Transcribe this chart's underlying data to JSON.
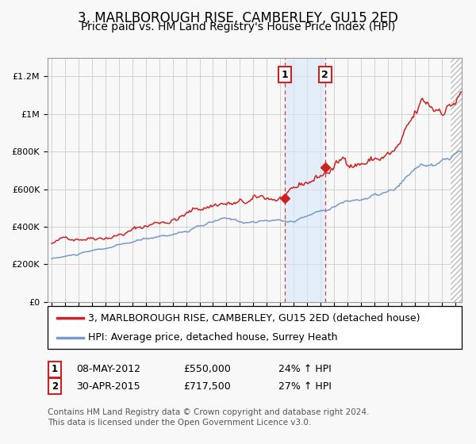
{
  "title": "3, MARLBOROUGH RISE, CAMBERLEY, GU15 2ED",
  "subtitle": "Price paid vs. HM Land Registry's House Price Index (HPI)",
  "ylim": [
    0,
    1300000
  ],
  "yticks": [
    0,
    200000,
    400000,
    600000,
    800000,
    1000000,
    1200000
  ],
  "ytick_labels": [
    "£0",
    "£200K",
    "£400K",
    "£600K",
    "£800K",
    "£1M",
    "£1.2M"
  ],
  "xstart": 1994.7,
  "xend": 2025.5,
  "sale1_date": 2012.35,
  "sale1_price": 550000,
  "sale1_text": "08-MAY-2012",
  "sale1_pct": "24%",
  "sale2_date": 2015.33,
  "sale2_price": 717500,
  "sale2_text": "30-APR-2015",
  "sale2_pct": "27%",
  "red_line_color": "#cc2222",
  "blue_line_color": "#7799cc",
  "bg_color": "#f8f8f8",
  "grid_color": "#cccccc",
  "shade_color": "#d8e8f8",
  "title_fontsize": 12,
  "subtitle_fontsize": 10,
  "tick_fontsize": 8,
  "legend_fontsize": 9,
  "annot_fontsize": 9,
  "footnote_fontsize": 7.5,
  "legend1_text": "3, MARLBOROUGH RISE, CAMBERLEY, GU15 2ED (detached house)",
  "legend2_text": "HPI: Average price, detached house, Surrey Heath",
  "footnote1": "Contains HM Land Registry data © Crown copyright and database right 2024.",
  "footnote2": "This data is licensed under the Open Government Licence v3.0."
}
